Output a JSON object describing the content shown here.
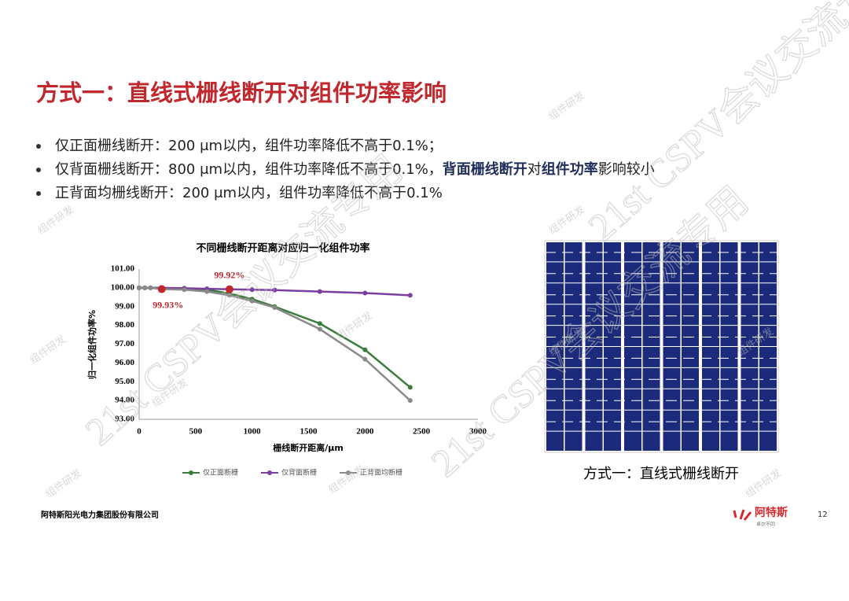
{
  "slide_title": "方式一：直线式栅线断开对组件功率影响",
  "bullets": [
    [
      {
        "text": "仅正面栅线断开",
        "bold": false
      },
      {
        "text": "：200 μm以内，组件功率降低不高于0.1%；",
        "bold": false
      }
    ],
    [
      {
        "text": "仅背面栅线断开",
        "bold": false
      },
      {
        "text": "：800 μm以内，组件功率降低不高于0.1%，",
        "bold": false
      },
      {
        "text": "背面栅线断开",
        "bold": true
      },
      {
        "text": "对",
        "bold": false
      },
      {
        "text": "组件功率",
        "bold": true
      },
      {
        "text": "影响较小",
        "bold": false
      }
    ],
    [
      {
        "text": "正背面均栅线断开",
        "bold": false
      },
      {
        "text": "：200 μm以内，组件功率降低不高于0.1%",
        "bold": false
      }
    ]
  ],
  "chart_data": {
    "type": "line",
    "title": "不同栅线断开距离对应归一化组件功率",
    "x_label": "栅线断开距离/μm",
    "y_label": "归一化组件功率%",
    "x": [
      0,
      50,
      100,
      200,
      400,
      600,
      800,
      1000,
      1200,
      1600,
      2000,
      2400
    ],
    "series": [
      {
        "name": "仅正面断栅",
        "color": "#3a7d3a",
        "values": [
          100,
          100,
          100,
          99.99,
          99.97,
          99.9,
          99.7,
          99.4,
          99.0,
          98.1,
          96.7,
          94.7
        ]
      },
      {
        "name": "仅背面断栅",
        "color": "#7a3fa0",
        "values": [
          100,
          100,
          100,
          100,
          99.98,
          99.95,
          99.92,
          99.9,
          99.88,
          99.8,
          99.72,
          99.6
        ]
      },
      {
        "name": "正背面均断栅",
        "color": "#8a8a8a",
        "values": [
          100,
          100,
          100,
          99.93,
          99.9,
          99.8,
          99.6,
          99.3,
          98.95,
          97.8,
          96.2,
          94.0
        ]
      }
    ],
    "xlim": [
      0,
      3000
    ],
    "xticks": [
      0,
      500,
      1000,
      1500,
      2000,
      2500,
      3000
    ],
    "ylim": [
      93,
      101
    ],
    "yticks": [
      {
        "value": 93,
        "label": "93.00"
      },
      {
        "value": 94,
        "label": "94.00"
      },
      {
        "value": 95,
        "label": "95.00"
      },
      {
        "value": 96,
        "label": "96.00"
      },
      {
        "value": 97,
        "label": "97.00"
      },
      {
        "value": 98,
        "label": "98.00"
      },
      {
        "value": 99,
        "label": "99.00"
      },
      {
        "value": 100,
        "label": "100.00"
      },
      {
        "value": 101,
        "label": "101.00"
      }
    ],
    "annotations": [
      {
        "x": 200,
        "y": 99.93,
        "label": "99.93%",
        "color": "#c0282d"
      },
      {
        "x": 800,
        "y": 99.92,
        "label": "99.92%",
        "color": "#c0282d"
      }
    ],
    "legend": "bottom"
  },
  "panel_caption": "方式一：直线式栅线断开",
  "footer": {
    "company": "阿特斯阳光电力集团股份有限公司",
    "logo": "阿特斯",
    "tagline": "卓尔不同",
    "page": "12"
  },
  "watermarks": {
    "main": "21st CSPV会议交流专用",
    "minor": "组件研发"
  }
}
